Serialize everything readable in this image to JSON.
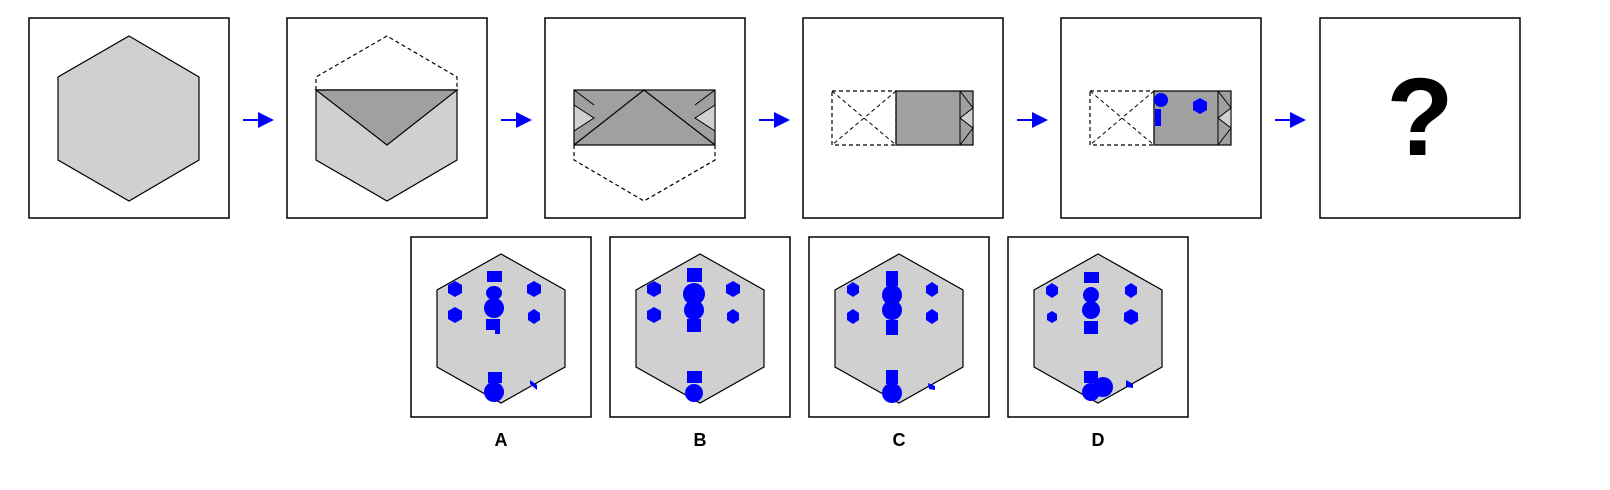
{
  "colors": {
    "panel_border": "#000000",
    "hexagon_fill": "#d0d0d0",
    "folded_fill": "#a0a0a0",
    "punch_hole": "#0000ff",
    "arrow": "#0000ff"
  },
  "sequence": {
    "steps": [
      {
        "id": "step-1",
        "description_icon": "hexagon-paper"
      },
      {
        "id": "step-2",
        "description_icon": "fold-top-down"
      },
      {
        "id": "step-3",
        "description_icon": "fold-bottom-up"
      },
      {
        "id": "step-4",
        "description_icon": "fold-left-right"
      },
      {
        "id": "step-5",
        "description_icon": "punched-folded-paper"
      }
    ],
    "question_mark": "?"
  },
  "options": [
    {
      "label": "A"
    },
    {
      "label": "B"
    },
    {
      "label": "C"
    },
    {
      "label": "D"
    }
  ]
}
